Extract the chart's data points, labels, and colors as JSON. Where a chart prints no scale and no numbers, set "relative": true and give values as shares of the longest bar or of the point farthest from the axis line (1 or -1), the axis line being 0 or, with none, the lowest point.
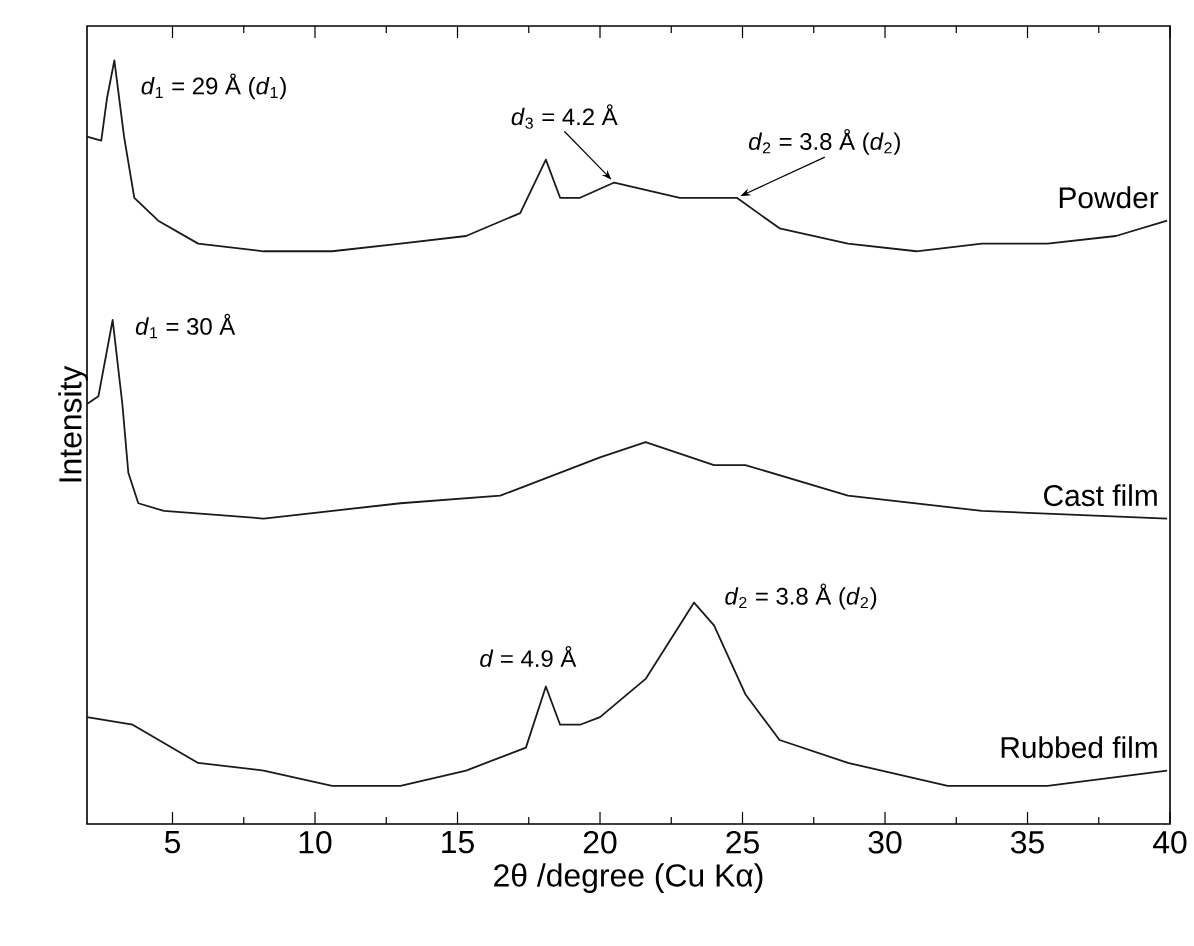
{
  "chart_data": {
    "type": "line",
    "relative": true,
    "xlabel": "2θ /degree (Cu Kα)",
    "ylabel": "Intensity",
    "xlim": [
      2,
      40
    ],
    "xticks": [
      5,
      10,
      15,
      20,
      25,
      30,
      35,
      40
    ],
    "tick_labels": "x",
    "series": [
      {
        "name": "Powder",
        "color": "#1a1a1a",
        "x": [
          2,
          2.5,
          2.7,
          2.96,
          3.3,
          3.66,
          4.5,
          5.9,
          8.2,
          10.6,
          13,
          15.3,
          17.2,
          18.1,
          18.6,
          19.3,
          20.5,
          22.8,
          24.8,
          26.3,
          28.7,
          31.1,
          33.4,
          35.7,
          38.1,
          39.9
        ],
        "values": [
          0.9,
          0.895,
          0.95,
          1.0,
          0.9,
          0.82,
          0.79,
          0.76,
          0.75,
          0.75,
          0.76,
          0.77,
          0.8,
          0.87,
          0.82,
          0.82,
          0.84,
          0.82,
          0.82,
          0.78,
          0.76,
          0.75,
          0.76,
          0.76,
          0.77,
          0.79
        ]
      },
      {
        "name": "Cast film",
        "color": "#1a1a1a",
        "x": [
          2,
          2.4,
          2.9,
          3.24,
          3.45,
          3.8,
          4.7,
          8.2,
          13,
          16.5,
          20,
          21.6,
          24,
          25.1,
          28.7,
          33.4,
          39.9
        ],
        "values": [
          0.55,
          0.56,
          0.66,
          0.55,
          0.46,
          0.42,
          0.41,
          0.4,
          0.42,
          0.43,
          0.48,
          0.5,
          0.47,
          0.47,
          0.43,
          0.41,
          0.4
        ]
      },
      {
        "name": "Rubbed film",
        "color": "#1a1a1a",
        "x": [
          2,
          3.6,
          5.9,
          8.2,
          10.6,
          13,
          15.3,
          17.4,
          18.1,
          18.6,
          19.3,
          20,
          21.6,
          23.3,
          24,
          25.1,
          26.3,
          28.7,
          32.2,
          35.7,
          39.9
        ],
        "values": [
          0.14,
          0.13,
          0.08,
          0.07,
          0.05,
          0.05,
          0.07,
          0.1,
          0.18,
          0.13,
          0.13,
          0.14,
          0.19,
          0.29,
          0.26,
          0.17,
          0.11,
          0.08,
          0.05,
          0.05,
          0.07
        ]
      }
    ],
    "annotations": [
      {
        "text": "*d*$_{1}$ = 29 Å (*d*$_{1}$)",
        "x": 2.96,
        "y": 1.0
      },
      {
        "text": "*d*$_{3}$ = 4.2 Å",
        "x": 20.5,
        "y": 0.84
      },
      {
        "text": "*d*$_{2}$ = 3.8 Å (*d*$_{2}$)",
        "x": 24.8,
        "y": 0.82
      },
      {
        "text": "*d*$_{1}$ = 30 Å",
        "x": 2.9,
        "y": 0.66
      },
      {
        "text": "*d* = 4.9 Å",
        "x": 18.1,
        "y": 0.18
      },
      {
        "text": "*d*$_{2}$ = 3.8 Å (*d*$_{2}$)",
        "x": 23.3,
        "y": 0.29
      }
    ]
  }
}
